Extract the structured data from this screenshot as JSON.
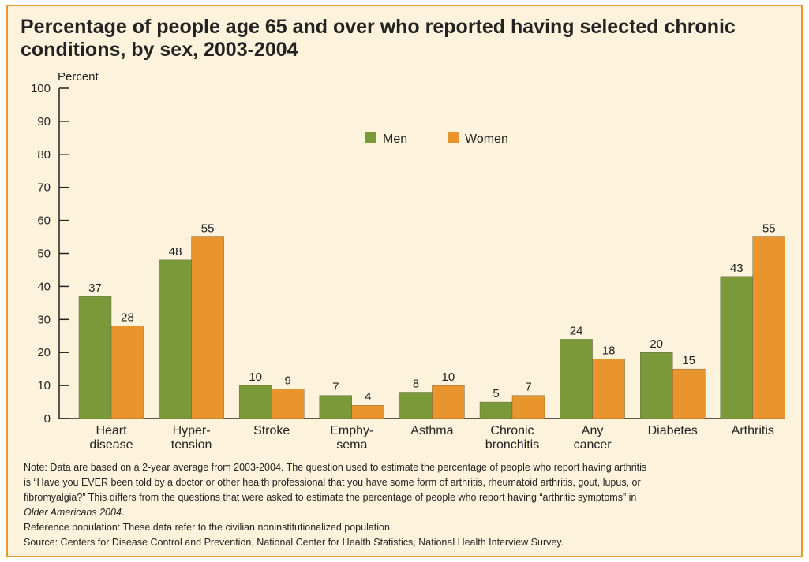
{
  "chart_data": {
    "type": "bar",
    "title": "Percentage of people age 65 and over who reported having selected chronic conditions, by sex, 2003-2004",
    "ylabel": "Percent",
    "xlabel": "",
    "ylim": [
      0,
      100
    ],
    "yticks": [
      0,
      10,
      20,
      30,
      40,
      50,
      60,
      70,
      80,
      90,
      100
    ],
    "categories": [
      [
        "Heart",
        "disease"
      ],
      [
        "Hyper-",
        "tension"
      ],
      [
        "Stroke"
      ],
      [
        "Emphy-",
        "sema"
      ],
      [
        "Asthma"
      ],
      [
        "Chronic",
        "bronchitis"
      ],
      [
        "Any",
        "cancer"
      ],
      [
        "Diabetes"
      ],
      [
        "Arthritis"
      ]
    ],
    "series": [
      {
        "name": "Men",
        "color": "#7a9a3a",
        "values": [
          37,
          48,
          10,
          7,
          8,
          5,
          24,
          20,
          43
        ]
      },
      {
        "name": "Women",
        "color": "#e8952e",
        "values": [
          28,
          55,
          9,
          4,
          10,
          7,
          18,
          15,
          55
        ]
      }
    ],
    "legend_position": "top-center",
    "grid": false
  },
  "notes": {
    "note_lines": [
      "Note:  Data are based on a 2-year average from 2003-2004. The question used to estimate the percentage of people who report having arthritis",
      "is “Have you EVER been told by a doctor or other health professional that you have some form of arthritis, rheumatoid arthritis, gout, lupus, or",
      "fibromyalgia?” This differs from the questions that were asked to estimate the percentage of people who report having “arthritic symptoms” in"
    ],
    "note_source_title": "Older Americans 2004",
    "note_end": ".",
    "reference": "Reference population:  These data refer to the civilian noninstitutionalized population.",
    "source": "Source:  Centers for Disease Control and Prevention, National Center for Health Statistics, National Health Interview Survey."
  }
}
